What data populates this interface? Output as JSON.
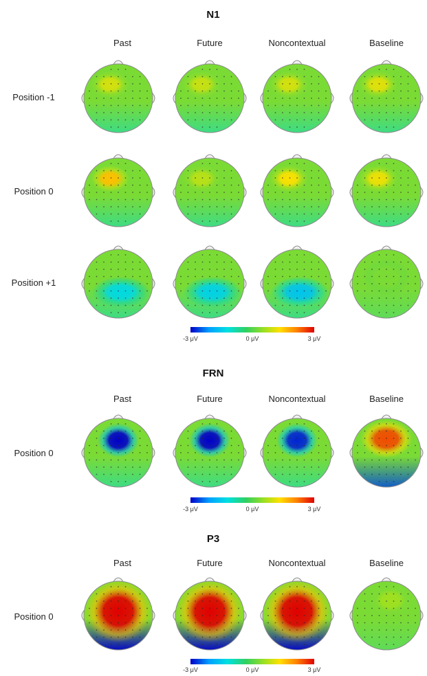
{
  "colorbar": {
    "min_label": "-3 μV",
    "mid_label": "0 μV",
    "max_label": "3 μV",
    "colormap": [
      "#0000c8",
      "#00a0ff",
      "#00e0e0",
      "#30d060",
      "#a0e020",
      "#ffe000",
      "#ff8000",
      "#e00000"
    ]
  },
  "panels": [
    {
      "title": "N1",
      "conditions": [
        "Past",
        "Future",
        "Noncontextual",
        "Baseline"
      ],
      "rows": [
        {
          "label": "Position -1",
          "maps": [
            {
              "condition": "Past",
              "pattern": "frontal-positive",
              "peak_uV": 1.0
            },
            {
              "condition": "Future",
              "pattern": "frontal-positive",
              "peak_uV": 0.9
            },
            {
              "condition": "Noncontextual",
              "pattern": "frontal-positive",
              "peak_uV": 1.0
            },
            {
              "condition": "Baseline",
              "pattern": "frontal-positive",
              "peak_uV": 1.1
            }
          ]
        },
        {
          "label": "Position 0",
          "maps": [
            {
              "condition": "Past",
              "pattern": "frontal-positive",
              "peak_uV": 1.6
            },
            {
              "condition": "Future",
              "pattern": "frontal-positive",
              "peak_uV": 0.8
            },
            {
              "condition": "Noncontextual",
              "pattern": "frontal-positive",
              "peak_uV": 1.3
            },
            {
              "condition": "Baseline",
              "pattern": "frontal-positive",
              "peak_uV": 1.2
            }
          ]
        },
        {
          "label": "Position +1",
          "maps": [
            {
              "condition": "Past",
              "pattern": "central-negative",
              "peak_uV": -1.3
            },
            {
              "condition": "Future",
              "pattern": "central-negative",
              "peak_uV": -1.4
            },
            {
              "condition": "Noncontextual",
              "pattern": "central-negative",
              "peak_uV": -1.6
            },
            {
              "condition": "Baseline",
              "pattern": "flat",
              "peak_uV": 0.3
            }
          ]
        }
      ]
    },
    {
      "title": "FRN",
      "conditions": [
        "Past",
        "Future",
        "Noncontextual",
        "Baseline"
      ],
      "rows": [
        {
          "label": "Position 0",
          "maps": [
            {
              "condition": "Past",
              "pattern": "frontocentral-negative",
              "peak_uV": -3.0
            },
            {
              "condition": "Future",
              "pattern": "frontocentral-negative",
              "peak_uV": -3.0
            },
            {
              "condition": "Noncontextual",
              "pattern": "frontocentral-negative",
              "peak_uV": -2.8
            },
            {
              "condition": "Baseline",
              "pattern": "frontocentral-positive",
              "peak_uV": 2.5
            }
          ]
        }
      ]
    },
    {
      "title": "P3",
      "conditions": [
        "Past",
        "Future",
        "Noncontextual",
        "Baseline"
      ],
      "rows": [
        {
          "label": "Position 0",
          "maps": [
            {
              "condition": "Past",
              "pattern": "broad-positive",
              "peak_uV": 3.0
            },
            {
              "condition": "Future",
              "pattern": "broad-positive",
              "peak_uV": 3.0
            },
            {
              "condition": "Noncontextual",
              "pattern": "broad-positive",
              "peak_uV": 3.0
            },
            {
              "condition": "Baseline",
              "pattern": "weak-positive",
              "peak_uV": 0.6
            }
          ]
        }
      ]
    }
  ]
}
